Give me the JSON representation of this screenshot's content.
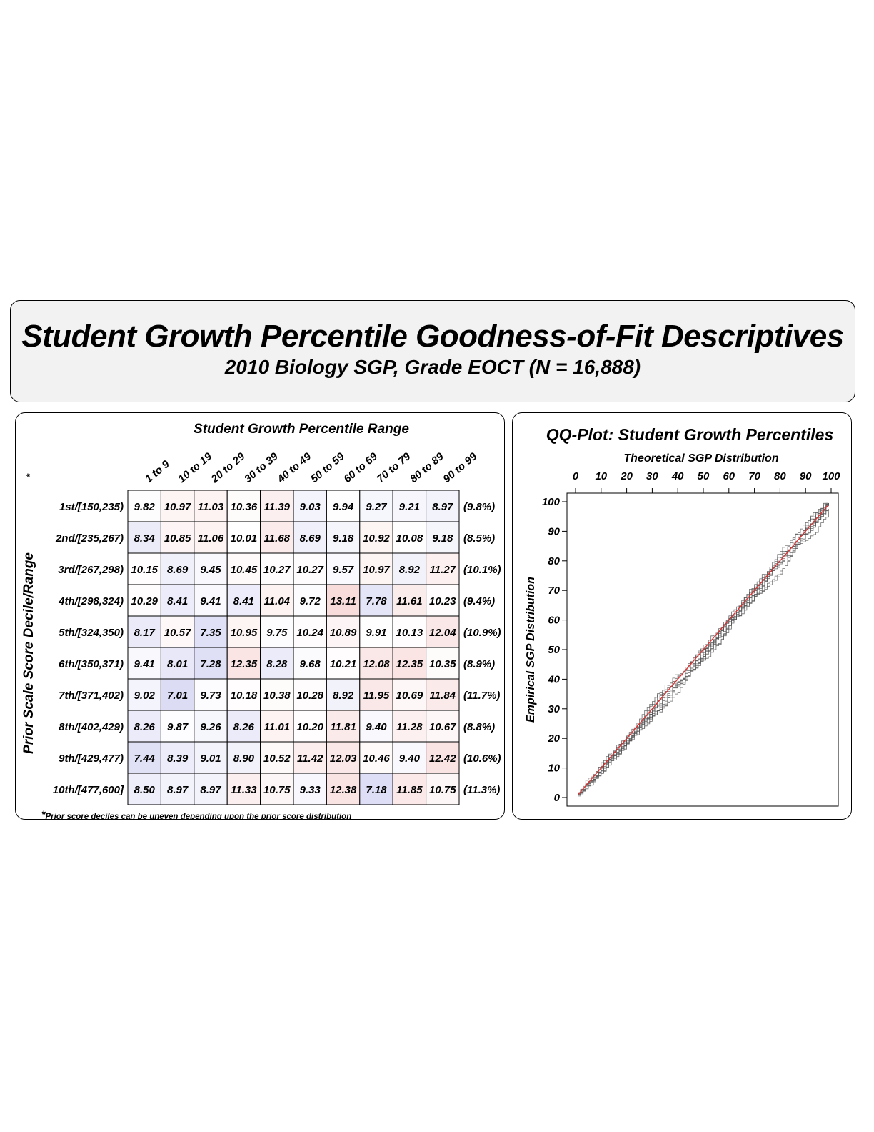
{
  "header": {
    "title": "Student Growth Percentile Goodness-of-Fit Descriptives",
    "subtitle": "2010 Biology SGP, Grade EOCT (N = 16,888)"
  },
  "chart_data": [
    {
      "type": "heatmap",
      "title": "Student Growth Percentile Range",
      "ylabel": "Prior Scale Score Decile/Range",
      "ylabel_marker": "*",
      "footnote_marker": "*",
      "footnote": "Prior score deciles can be uneven depending upon the prior score distribution",
      "columns": [
        "1 to 9",
        "10 to 19",
        "20 to 29",
        "30 to 39",
        "40 to 49",
        "50 to 59",
        "60 to 69",
        "70 to 79",
        "80 to 89",
        "90 to 99"
      ],
      "rows": [
        {
          "label": "1st/[150,235)",
          "values": [
            "9.82",
            "10.97",
            "11.03",
            "10.36",
            "11.39",
            "9.03",
            "9.94",
            "9.27",
            "9.21",
            "8.97"
          ],
          "percent": "(9.8%)"
        },
        {
          "label": "2nd/[235,267)",
          "values": [
            "8.34",
            "10.85",
            "11.06",
            "10.01",
            "11.68",
            "8.69",
            "9.18",
            "10.92",
            "10.08",
            "9.18"
          ],
          "percent": "(8.5%)"
        },
        {
          "label": "3rd/[267,298)",
          "values": [
            "10.15",
            "8.69",
            "9.45",
            "10.45",
            "10.27",
            "10.27",
            "9.57",
            "10.97",
            "8.92",
            "11.27"
          ],
          "percent": "(10.1%)"
        },
        {
          "label": "4th/[298,324)",
          "values": [
            "10.29",
            "8.41",
            "9.41",
            "8.41",
            "11.04",
            "9.72",
            "13.11",
            "7.78",
            "11.61",
            "10.23"
          ],
          "percent": "(9.4%)"
        },
        {
          "label": "5th/[324,350)",
          "values": [
            "8.17",
            "10.57",
            "7.35",
            "10.95",
            "9.75",
            "10.24",
            "10.89",
            "9.91",
            "10.13",
            "12.04"
          ],
          "percent": "(10.9%)"
        },
        {
          "label": "6th/[350,371)",
          "values": [
            "9.41",
            "8.01",
            "7.28",
            "12.35",
            "8.28",
            "9.68",
            "10.21",
            "12.08",
            "12.35",
            "10.35"
          ],
          "percent": "(8.9%)"
        },
        {
          "label": "7th/[371,402)",
          "values": [
            "9.02",
            "7.01",
            "9.73",
            "10.18",
            "10.38",
            "10.28",
            "8.92",
            "11.95",
            "10.69",
            "11.84"
          ],
          "percent": "(11.7%)"
        },
        {
          "label": "8th/[402,429)",
          "values": [
            "8.26",
            "9.87",
            "9.26",
            "8.26",
            "11.01",
            "10.20",
            "11.81",
            "9.40",
            "11.28",
            "10.67"
          ],
          "percent": "(8.8%)"
        },
        {
          "label": "9th/[429,477)",
          "values": [
            "7.44",
            "8.39",
            "9.01",
            "8.90",
            "10.52",
            "11.42",
            "12.03",
            "10.46",
            "9.40",
            "12.42"
          ],
          "percent": "(10.6%)"
        },
        {
          "label": "10th/[477,600]",
          "values": [
            "8.50",
            "8.97",
            "8.97",
            "11.33",
            "10.75",
            "9.33",
            "12.38",
            "7.18",
            "11.85",
            "10.75"
          ],
          "percent": "(11.3%)"
        }
      ],
      "color_scale": {
        "low": "#dcdcf5",
        "mid": "#ffffff",
        "high": "#f8dcdc",
        "center_value": 10
      }
    },
    {
      "type": "line",
      "title": "QQ-Plot: Student Growth Percentiles",
      "xlabel": "Theoretical SGP Distribution",
      "ylabel": "Empirical SGP Distribution",
      "xlim": [
        0,
        100
      ],
      "ylim": [
        0,
        100
      ],
      "xticks": [
        "0",
        "10",
        "20",
        "30",
        "40",
        "50",
        "60",
        "70",
        "80",
        "90",
        "100"
      ],
      "yticks": [
        "0",
        "10",
        "20",
        "30",
        "40",
        "50",
        "60",
        "70",
        "80",
        "90",
        "100"
      ],
      "reference_line": {
        "x": [
          1,
          99
        ],
        "y": [
          1,
          99
        ],
        "color": "#e03030"
      },
      "empirical_lines": 10,
      "empirical_color": "#555555"
    }
  ]
}
